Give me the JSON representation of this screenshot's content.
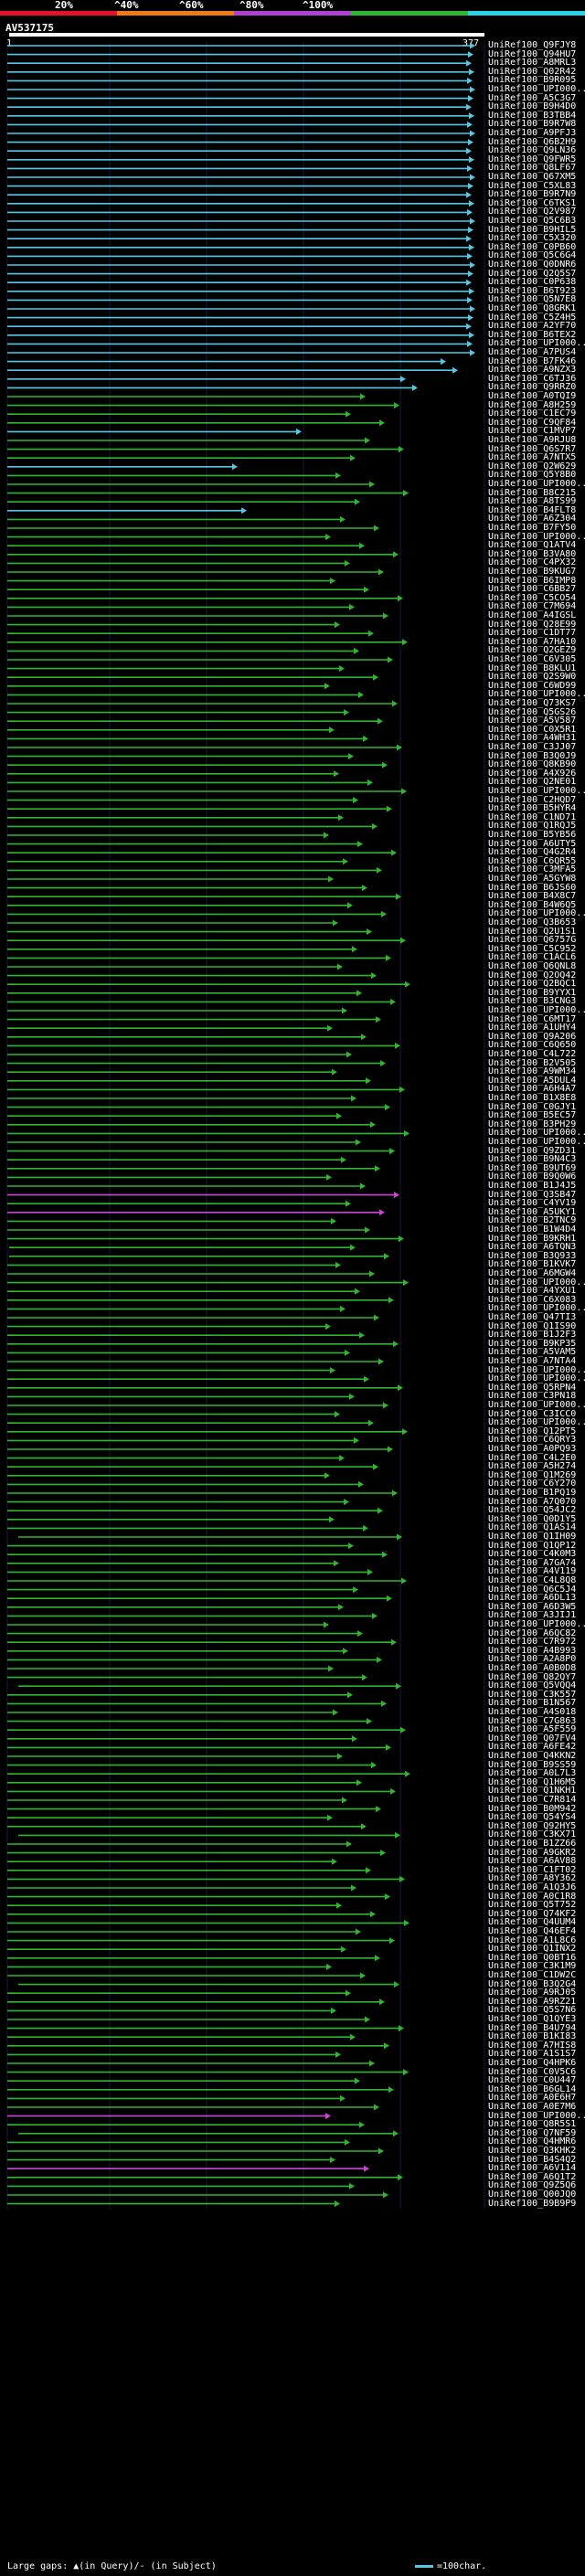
{
  "query_id": "AV537175",
  "query_start": "1",
  "query_end": "377",
  "scale": {
    "labels": [
      "20%",
      "^40%",
      "^60%",
      "^80%",
      "^100%"
    ],
    "colors": [
      "#e8102a",
      "#f07a16",
      "#b13fd4",
      "#2fb52f",
      "#26d4e8"
    ]
  },
  "legend": {
    "large_gaps": "Large gaps: ▲(in Query)/- (in Subject)",
    "scale_note": "=100char."
  },
  "hits": [
    "UniRef100_Q9FJY8",
    "UniRef100_Q94HU7",
    "UniRef100_A8MRL3",
    "UniRef100_Q02R42",
    "UniRef100_B9R095",
    "UniRef100_UPI000...",
    "UniRef100_A5C3G7",
    "UniRef100_B9H4D0",
    "UniRef100_B3TBB4",
    "UniRef100_B9R7W8",
    "UniRef100_A9PFJ3",
    "UniRef100_Q6B2H9",
    "UniRef100_Q9LN36",
    "UniRef100_Q9FWR5",
    "UniRef100_Q8LF67",
    "UniRef100_Q67XM5",
    "UniRef100_C5XL83",
    "UniRef100_B9R7N9",
    "UniRef100_C6TKS1",
    "UniRef100_Q2V987",
    "UniRef100_Q5C6B3",
    "UniRef100_B9HIL5",
    "UniRef100_C5X320",
    "UniRef100_C0PB60",
    "UniRef100_Q5C6G4",
    "UniRef100_Q0DNR6",
    "UniRef100_Q2Q5S7",
    "UniRef100_C0P638",
    "UniRef100_B6T923",
    "UniRef100_Q5N7E8",
    "UniRef100_Q8GRK1",
    "UniRef100_C5Z4H5",
    "UniRef100_A2YF70",
    "UniRef100_B6TEX2",
    "UniRef100_UPI000...",
    "UniRef100_A7PUS4",
    "UniRef100_B7FK46",
    "UniRef100_A9NZX3",
    "UniRef100_C6TJ36",
    "UniRef100_Q9RRZ0",
    "UniRef100_A0TQI9",
    "UniRef100_A8H259",
    "UniRef100_C1EC79",
    "UniRef100_C9QF84",
    "UniRef100_C1MVP7",
    "UniRef100_A9RJU8",
    "UniRef100_Q6S7R7",
    "UniRef100_A7NTX5",
    "UniRef100_Q2W629",
    "UniRef100_Q5Y8B0",
    "UniRef100_UPI000...",
    "UniRef100_B8C215",
    "UniRef100_A8TS99",
    "UniRef100_B4FLT8",
    "UniRef100_A6Z304",
    "UniRef100_B7FY50",
    "UniRef100_UPI000...",
    "UniRef100_Q1ATV4",
    "UniRef100_B3VA80",
    "UniRef100_C4PX32",
    "UniRef100_B9KUG7",
    "UniRef100_B6IMP8",
    "UniRef100_C6BB27",
    "UniRef100_C5CO54",
    "UniRef100_C7M694",
    "UniRef100_A4IGSL",
    "UniRef100_Q28E99",
    "UniRef100_C1DT77",
    "UniRef100_A7HA10",
    "UniRef100_Q2GEZ9",
    "UniRef100_C6V305",
    "UniRef100_B8KLU1",
    "UniRef100_Q2S9W0",
    "UniRef100_C6WD99",
    "UniRef100_UPI000...",
    "UniRef100_Q73KS7",
    "UniRef100_Q5GS26",
    "UniRef100_A5V587",
    "UniRef100_C0X5R1",
    "UniRef100_A4WH31",
    "UniRef100_C3JJ07",
    "UniRef100_B3Q0J9",
    "UniRef100_Q8KB90",
    "UniRef100_A4X926",
    "UniRef100_Q2NE01",
    "UniRef100_UPI000...",
    "UniRef100_C2HQD7",
    "UniRef100_B5HYR4",
    "UniRef100_C1ND71",
    "UniRef100_Q1RQJ5",
    "UniRef100_B5YB56",
    "UniRef100_A6UTY5",
    "UniRef100_Q4G2R4",
    "UniRef100_C6QR55",
    "UniRef100_C3MFA5",
    "UniRef100_A5GYW8",
    "UniRef100_B6JS60",
    "UniRef100_B4X8C7",
    "UniRef100_B4W6Q5",
    "UniRef100_UPI000...",
    "UniRef100_Q3B653",
    "UniRef100_Q2U1S1",
    "UniRef100_Q6757G",
    "UniRef100_C5C952",
    "UniRef100_C1ACL6",
    "UniRef100_Q6QNL8",
    "UniRef100_Q2OQ42",
    "UniRef100_Q2BQC1",
    "UniRef100_B9YYX1",
    "UniRef100_B3CNG3",
    "UniRef100_UPI000...",
    "UniRef100_C6MT17",
    "UniRef100_A1UHY4",
    "UniRef100_Q9A206",
    "UniRef100_C6Q650",
    "UniRef100_C4L722",
    "UniRef100_B2V505",
    "UniRef100_A9WM34",
    "UniRef100_A5DUL4",
    "UniRef100_A6H4A7",
    "UniRef100_B1X8E8",
    "UniRef100_C0GJY1",
    "UniRef100_B5EC57",
    "UniRef100_B3PH29",
    "UniRef100_UPI000...",
    "UniRef100_UPI000...",
    "UniRef100_Q9ZD31",
    "UniRef100_B9N4C3",
    "UniRef100_B9UT69",
    "UniRef100_B9Q0W6",
    "UniRef100_B1J4J5",
    "UniRef100_Q3SB47",
    "UniRef100_C4YV19",
    "UniRef100_A5UKY1",
    "UniRef100_B2TNC9",
    "UniRef100_B1W4D4",
    "UniRef100_B9KRH1",
    "UniRef100_A6TQN3",
    "UniRef100_B3Q933",
    "UniRef100_B1KVK7",
    "UniRef100_A6MGW4",
    "UniRef100_UPI000...",
    "UniRef100_A4YXU1",
    "UniRef100_C6X083",
    "UniRef100_UPI000...",
    "UniRef100_Q47TI3",
    "UniRef100_Q1IS90",
    "UniRef100_B1J2F3",
    "UniRef100_B9KP35",
    "UniRef100_A5VAM5",
    "UniRef100_A7NTA4",
    "UniRef100_UPI000...",
    "UniRef100_UPI000...",
    "UniRef100_Q5RPN4",
    "UniRef100_C3PN18",
    "UniRef100_UPI000...",
    "UniRef100_C3ICC0",
    "UniRef100_UPI000...",
    "UniRef100_Q12PT5",
    "UniRef100_C6QRY3",
    "UniRef100_A0PQ93",
    "UniRef100_C4L2E0",
    "UniRef100_A5H274",
    "UniRef100_Q1M269",
    "UniRef100_C6Y270",
    "UniRef100_B1PQ19",
    "UniRef100_A7Q070",
    "UniRef100_Q54JC2",
    "UniRef100_Q0D1Y5",
    "UniRef100_Q1AS14",
    "UniRef100_Q1IH09",
    "UniRef100_Q1QP12",
    "UniRef100_C4K0M3",
    "UniRef100_A7GA74",
    "UniRef100_A4V119",
    "UniRef100_C4L8Q8",
    "UniRef100_Q6C5J4",
    "UniRef100_A6DL13",
    "UniRef100_A6D3W5",
    "UniRef100_A3JIJ1",
    "UniRef100_UPI000...",
    "UniRef100_A6QC82",
    "UniRef100_C7R972",
    "UniRef100_A4B993",
    "UniRef100_A2A8P0",
    "UniRef100_A0B0D8",
    "UniRef100_Q82QY7",
    "UniRef100_Q5VQQ4",
    "UniRef100_C3K557",
    "UniRef100_B1N567",
    "UniRef100_A4S018",
    "UniRef100_C7G863",
    "UniRef100_A5F559",
    "UniRef100_Q07FV4",
    "UniRef100_A6FE42",
    "UniRef100_Q4KKN2",
    "UniRef100_B9SS59",
    "UniRef100_A0L7L3",
    "UniRef100_Q1H6M5",
    "UniRef100_Q1NKH1",
    "UniRef100_C7R814",
    "UniRef100_B0M942",
    "UniRef100_Q54YS4",
    "UniRef100_Q92HY5",
    "UniRef100_C3KX71",
    "UniRef100_B1ZZ66",
    "UniRef100_A9GKR2",
    "UniRef100_A6AV88",
    "UniRef100_C1FT02",
    "UniRef100_A8Y362",
    "UniRef100_A1Q3J6",
    "UniRef100_A0C1R8",
    "UniRef100_Q5T752",
    "UniRef100_Q74KF2",
    "UniRef100_Q4UUM4",
    "UniRef100_Q46EF4",
    "UniRef100_A1L8C6",
    "UniRef100_Q1INX2",
    "UniRef100_Q0BT16",
    "UniRef100_C3K1M9",
    "UniRef100_C1DW2C",
    "UniRef100_B3Q2G4",
    "UniRef100_A9RJ05",
    "UniRef100_A9RZ21",
    "UniRef100_Q5S7N6",
    "UniRef100_Q1QYE3",
    "UniRef100_B4U794",
    "UniRef100_B1KI83",
    "UniRef100_A7HIS8",
    "UniRef100_A1S1S7",
    "UniRef100_Q4HPK6",
    "UniRef100_C0V5C6",
    "UniRef100_C0U447",
    "UniRef100_B6GL14",
    "UniRef100_A0E6H7",
    "UniRef100_A0E7M6",
    "UniRef100_UPI000...",
    "UniRef100_Q8R5S1",
    "UniRef100_Q7NF59",
    "UniRef100_Q4HMR6",
    "UniRef100_Q3KHK2",
    "UniRef100_B4S4Q2",
    "UniRef100_A6V114",
    "UniRef100_A6Q1T2",
    "UniRef100_Q9Z5Q6",
    "UniRef100_Q00JQ0",
    "UniRef100_B9B9P9"
  ]
}
